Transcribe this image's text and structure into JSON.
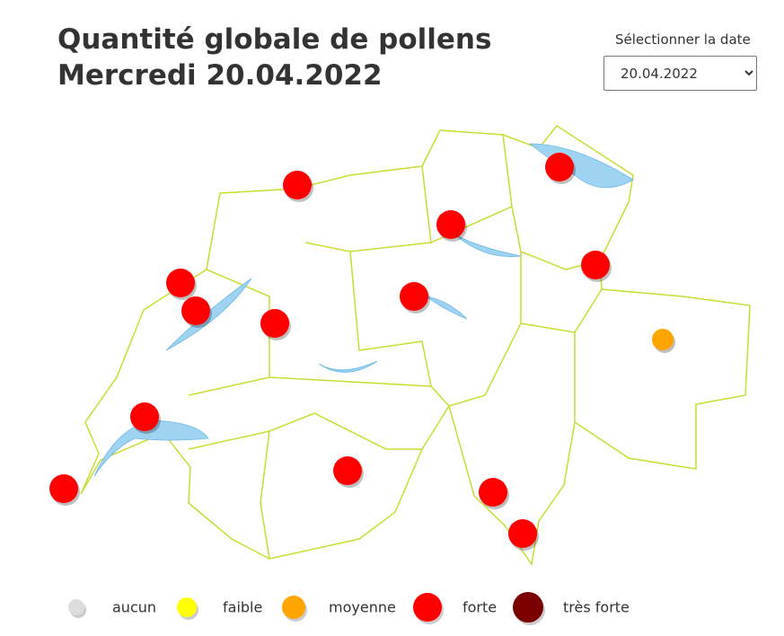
{
  "header": {
    "title_line1": "Quantité globale de pollens",
    "title_line2": "Mercredi 20.04.2022"
  },
  "date_selector": {
    "label": "Sélectionner la date",
    "value": "20.04.2022"
  },
  "legend": [
    {
      "label": "aucun",
      "color": "#dddddd"
    },
    {
      "label": "faible",
      "color": "#ffff00"
    },
    {
      "label": "moyenne",
      "color": "#ffa500"
    },
    {
      "label": "forte",
      "color": "#ff0000"
    },
    {
      "label": "très forte",
      "color": "#7a0000"
    }
  ],
  "markers": [
    3,
    3,
    3,
    3,
    3,
    3,
    3,
    3,
    2,
    3,
    3,
    3,
    3,
    3
  ]
}
